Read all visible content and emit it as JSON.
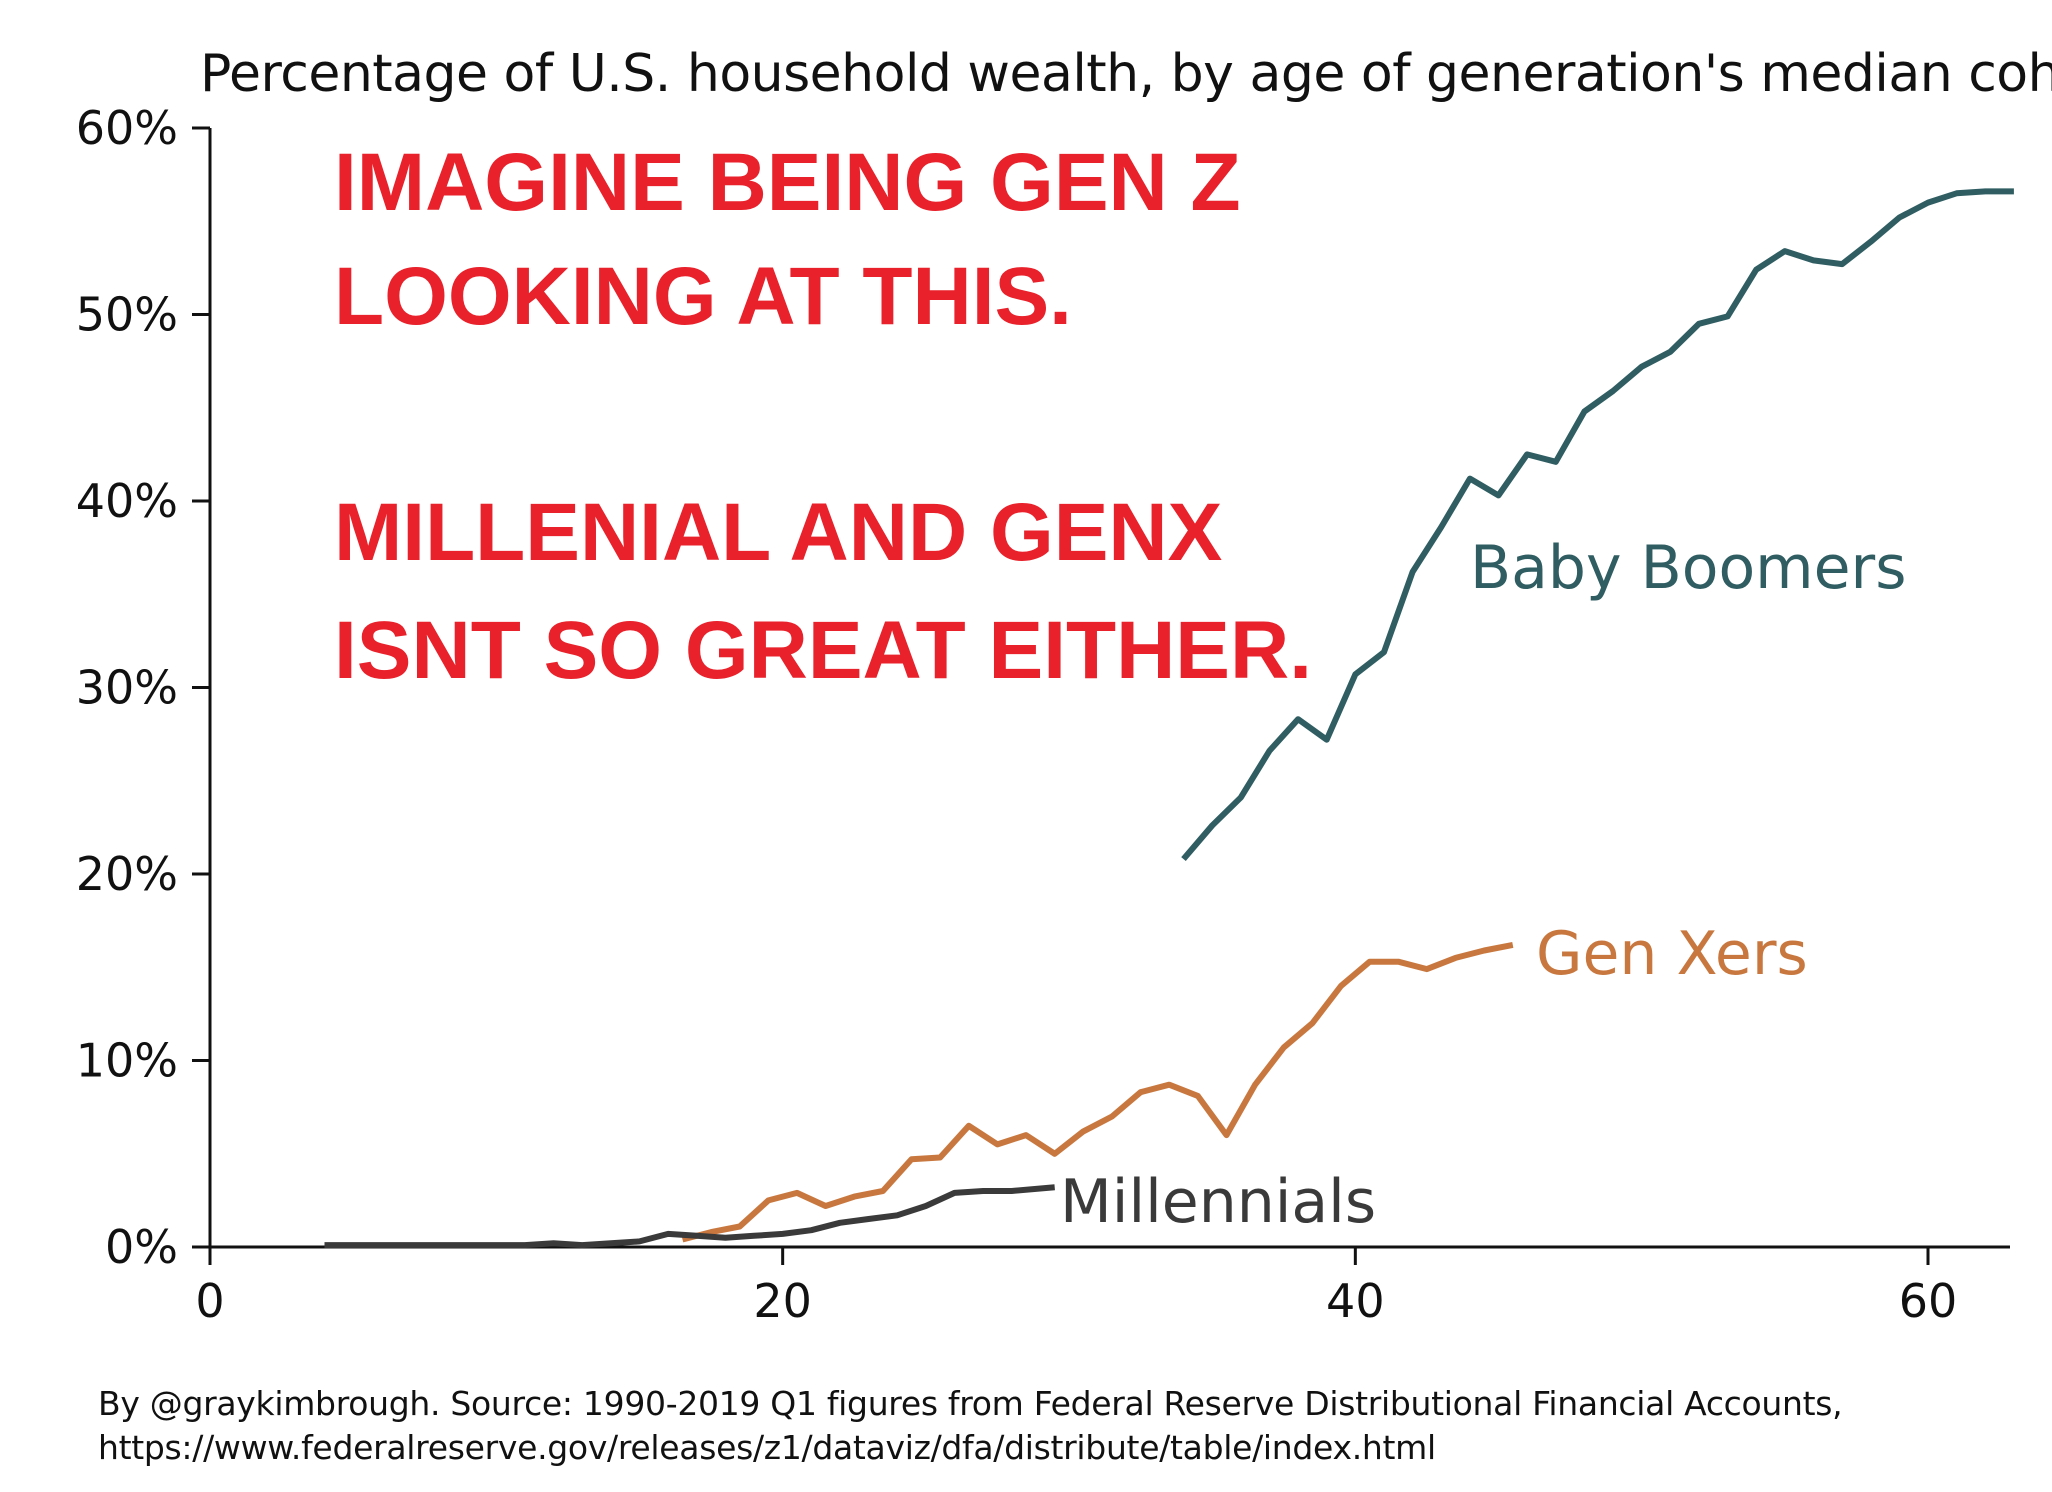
{
  "title": "Percentage of U.S. household wealth, by age of generation's median cohort",
  "annotation": {
    "line1": "IMAGINE BEING GEN Z",
    "line2": "LOOKING AT THIS.",
    "line3": "MILLENIAL AND GENX",
    "line4": "ISNT SO GREAT EITHER."
  },
  "footer": {
    "line1": "By @graykimbrough. Source: 1990-2019 Q1 figures from Federal Reserve Distributional Financial Accounts,",
    "line2": "https://www.federalreserve.gov/releases/z1/dataviz/dfa/distribute/table/index.html"
  },
  "colors": {
    "annotation": "#e8212b",
    "boomers": "#2f5d62",
    "genx": "#c8783f",
    "millennials": "#3a3a3a",
    "axis": "#111111"
  },
  "chart_data": {
    "type": "line",
    "title": "Percentage of U.S. household wealth, by age of generation's median cohort",
    "xlabel": "",
    "ylabel": "",
    "xlim": [
      0,
      63
    ],
    "ylim": [
      0,
      60
    ],
    "x_ticks": [
      0,
      20,
      40,
      60
    ],
    "x_tick_labels": [
      "0",
      "20",
      "40",
      "60"
    ],
    "y_ticks": [
      0,
      10,
      20,
      30,
      40,
      50,
      60
    ],
    "y_tick_labels": [
      "0%",
      "10%",
      "20%",
      "30%",
      "40%",
      "50%",
      "60%"
    ],
    "grid": false,
    "series": [
      {
        "name": "Baby Boomers",
        "color": "#2f5d62",
        "x": [
          34,
          35,
          36,
          37,
          38,
          39,
          40,
          41,
          42,
          43,
          44,
          45,
          46,
          47,
          48,
          49,
          50,
          51,
          52,
          53,
          54,
          55,
          56,
          57,
          58,
          59,
          60,
          61,
          62,
          63
        ],
        "y": [
          20.8,
          22.6,
          24.1,
          26.6,
          28.3,
          27.2,
          30.7,
          31.9,
          36.2,
          38.6,
          41.2,
          40.3,
          42.5,
          42.1,
          44.8,
          45.9,
          47.2,
          48.0,
          49.5,
          49.9,
          52.4,
          53.4,
          52.9,
          52.7,
          53.9,
          55.2,
          56.0,
          56.5,
          56.6,
          56.6
        ]
      },
      {
        "name": "Gen Xers",
        "color": "#c8783f",
        "x": [
          16.5,
          17.5,
          18.5,
          19.5,
          20.5,
          21.5,
          22.5,
          23.5,
          24.5,
          25.5,
          26.5,
          27.5,
          28.5,
          29.5,
          30.5,
          31.5,
          32.5,
          33.5,
          34.5,
          35.5,
          36.5,
          37.5,
          38.5,
          39.5,
          40.5,
          41.5,
          42.5,
          43.5,
          44.5,
          45.5
        ],
        "y": [
          0.4,
          0.8,
          1.1,
          2.5,
          2.9,
          2.2,
          2.7,
          3.0,
          4.7,
          4.8,
          6.5,
          5.5,
          6.0,
          5.0,
          6.2,
          7.0,
          8.3,
          8.7,
          8.1,
          6.0,
          8.7,
          10.7,
          12.0,
          14.0,
          15.3,
          15.3,
          14.9,
          15.5,
          15.9,
          16.2
        ]
      },
      {
        "name": "Millennials",
        "color": "#3a3a3a",
        "x": [
          4,
          5,
          6,
          7,
          8,
          9,
          10,
          11,
          12,
          13,
          14,
          15,
          16,
          17,
          18,
          19,
          20,
          21,
          22,
          23,
          24,
          25,
          26,
          27,
          28,
          29.5
        ],
        "y": [
          0.1,
          0.1,
          0.1,
          0.1,
          0.1,
          0.1,
          0.1,
          0.1,
          0.2,
          0.1,
          0.2,
          0.3,
          0.7,
          0.6,
          0.5,
          0.6,
          0.7,
          0.9,
          1.3,
          1.5,
          1.7,
          2.2,
          2.9,
          3.0,
          3.0,
          3.2
        ]
      }
    ]
  }
}
